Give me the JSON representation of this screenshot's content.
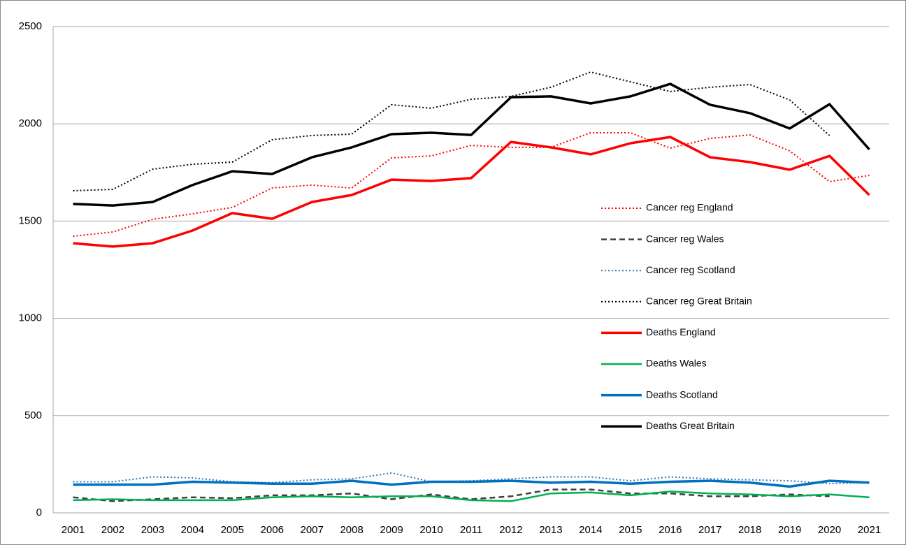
{
  "chart_data": {
    "type": "line",
    "categories": [
      "2001",
      "2002",
      "2003",
      "2004",
      "2005",
      "2006",
      "2007",
      "2008",
      "2009",
      "2010",
      "2011",
      "2012",
      "2013",
      "2014",
      "2015",
      "2016",
      "2017",
      "2018",
      "2019",
      "2020",
      "2021"
    ],
    "ylim": [
      0,
      2500
    ],
    "yticks": [
      0,
      500,
      1000,
      1500,
      2000,
      2500
    ],
    "grid": true,
    "series": [
      {
        "name": "Cancer reg England",
        "color": "#ff0000",
        "style": "dotted",
        "linewidth": 2,
        "values": [
          1422,
          1444,
          1509,
          1537,
          1570,
          1670,
          1685,
          1670,
          1825,
          1835,
          1889,
          1879,
          1879,
          1954,
          1954,
          1875,
          1925,
          1943,
          1861,
          1703,
          1735
        ]
      },
      {
        "name": "Cancer reg Wales",
        "color": "#404040",
        "style": "dashed",
        "linewidth": 2.5,
        "values": [
          80,
          60,
          70,
          80,
          75,
          90,
          90,
          100,
          70,
          95,
          70,
          85,
          120,
          120,
          100,
          100,
          85,
          85,
          95,
          85,
          null
        ]
      },
      {
        "name": "Cancer reg Scotland",
        "color": "#2e75b6",
        "style": "dotted",
        "linewidth": 2,
        "values": [
          160,
          160,
          185,
          180,
          160,
          155,
          170,
          175,
          205,
          160,
          165,
          175,
          185,
          185,
          165,
          185,
          175,
          170,
          165,
          150,
          155
        ]
      },
      {
        "name": "Cancer reg Great Britain",
        "color": "#000000",
        "style": "dotted",
        "linewidth": 2,
        "values": [
          1656,
          1663,
          1767,
          1792,
          1803,
          1918,
          1940,
          1947,
          2098,
          2080,
          2126,
          2141,
          2188,
          2266,
          2216,
          2166,
          2188,
          2202,
          2123,
          1940,
          null
        ]
      },
      {
        "name": "Deaths England",
        "color": "#ff0000",
        "style": "solid",
        "linewidth": 3.5,
        "values": [
          1386,
          1369,
          1386,
          1451,
          1541,
          1512,
          1598,
          1634,
          1713,
          1706,
          1721,
          1907,
          1879,
          1843,
          1900,
          1932,
          1828,
          1803,
          1764,
          1835,
          1634
        ]
      },
      {
        "name": "Deaths Wales",
        "color": "#00b050",
        "style": "solid",
        "linewidth": 2.5,
        "values": [
          65,
          70,
          65,
          65,
          65,
          80,
          85,
          80,
          85,
          85,
          65,
          60,
          100,
          105,
          90,
          110,
          100,
          95,
          85,
          95,
          80
        ]
      },
      {
        "name": "Deaths Scotland",
        "color": "#0070c0",
        "style": "solid",
        "linewidth": 3.5,
        "values": [
          145,
          145,
          145,
          160,
          155,
          150,
          150,
          165,
          145,
          160,
          160,
          165,
          155,
          160,
          150,
          160,
          165,
          155,
          135,
          165,
          155
        ]
      },
      {
        "name": "Deaths Great Britain",
        "color": "#000000",
        "style": "solid",
        "linewidth": 3.5,
        "values": [
          1588,
          1580,
          1598,
          1685,
          1756,
          1742,
          1828,
          1879,
          1947,
          1954,
          1943,
          2137,
          2141,
          2105,
          2141,
          2205,
          2098,
          2055,
          1976,
          2101,
          1868
        ]
      }
    ]
  }
}
